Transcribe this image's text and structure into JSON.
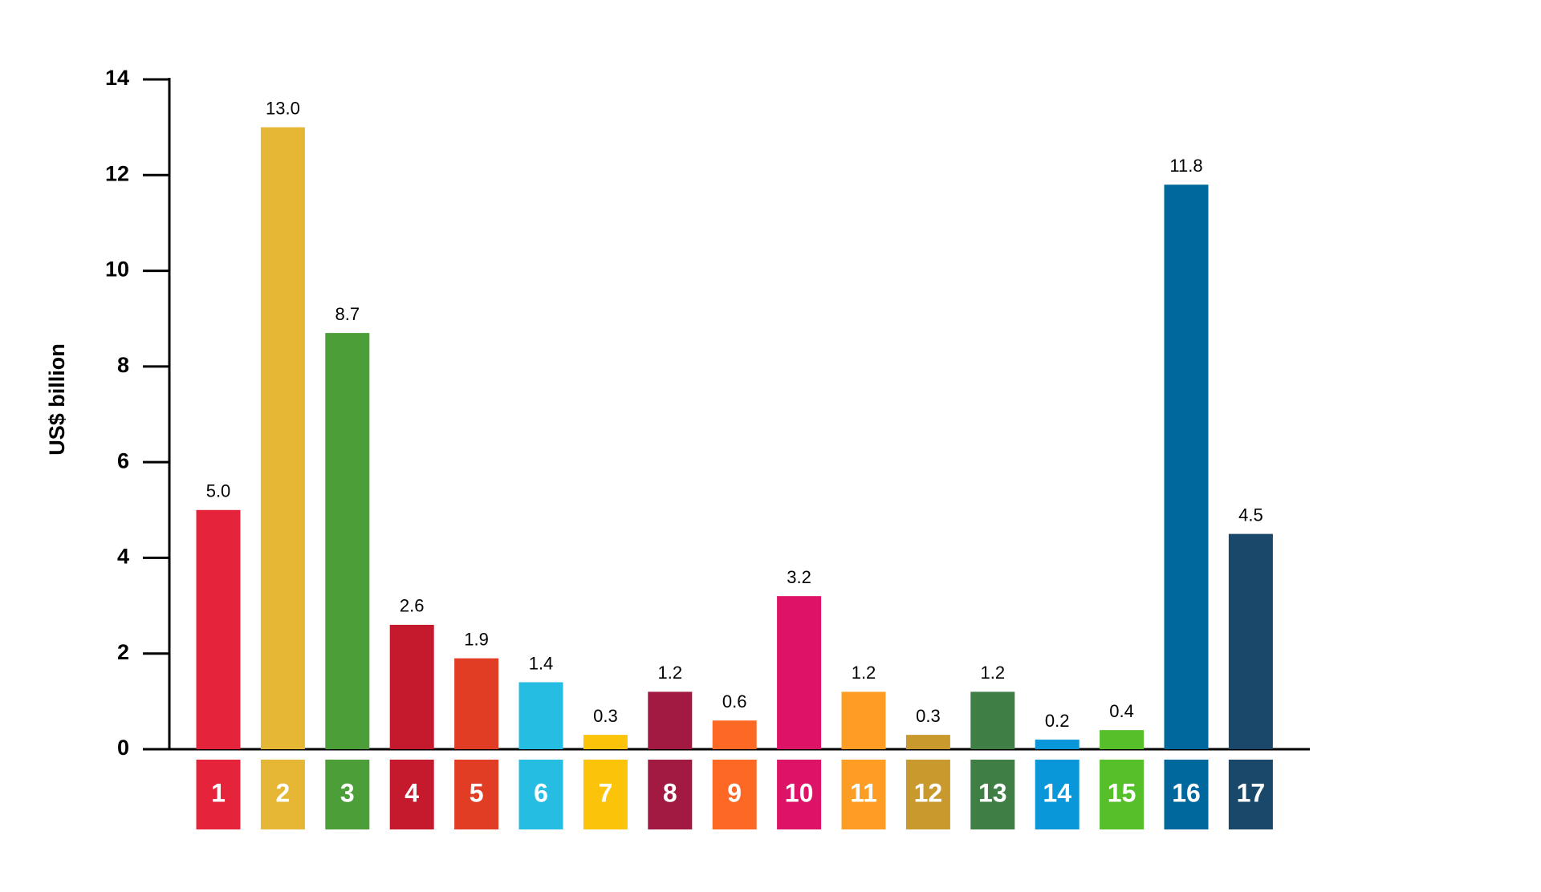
{
  "chart_data": {
    "type": "bar",
    "y_label": "US$ billion",
    "categories": [
      "1",
      "2",
      "3",
      "4",
      "5",
      "6",
      "7",
      "8",
      "9",
      "10",
      "11",
      "12",
      "13",
      "14",
      "15",
      "16",
      "17"
    ],
    "values": [
      5.0,
      13.0,
      8.7,
      2.6,
      1.9,
      1.4,
      0.3,
      1.2,
      0.6,
      3.2,
      1.2,
      0.3,
      1.2,
      0.2,
      0.4,
      11.8,
      4.5
    ],
    "value_labels": [
      "5.0",
      "13.0",
      "8.7",
      "2.6",
      "1.9",
      "1.4",
      "0.3",
      "1.2",
      "0.6",
      "3.2",
      "1.2",
      "0.3",
      "1.2",
      "0.2",
      "0.4",
      "11.8",
      "4.5"
    ],
    "colors": [
      "#e5243b",
      "#e5b735",
      "#4c9f38",
      "#c5192d",
      "#e03d24",
      "#26bde2",
      "#fcc30b",
      "#a21942",
      "#fd6925",
      "#dd1367",
      "#fd9d24",
      "#c9992d",
      "#3f7e44",
      "#0a97d9",
      "#56c02b",
      "#00689d",
      "#19486a"
    ],
    "ylim": [
      0,
      14
    ],
    "yticks": [
      0,
      2,
      4,
      6,
      8,
      10,
      12,
      14
    ],
    "grid": false
  }
}
